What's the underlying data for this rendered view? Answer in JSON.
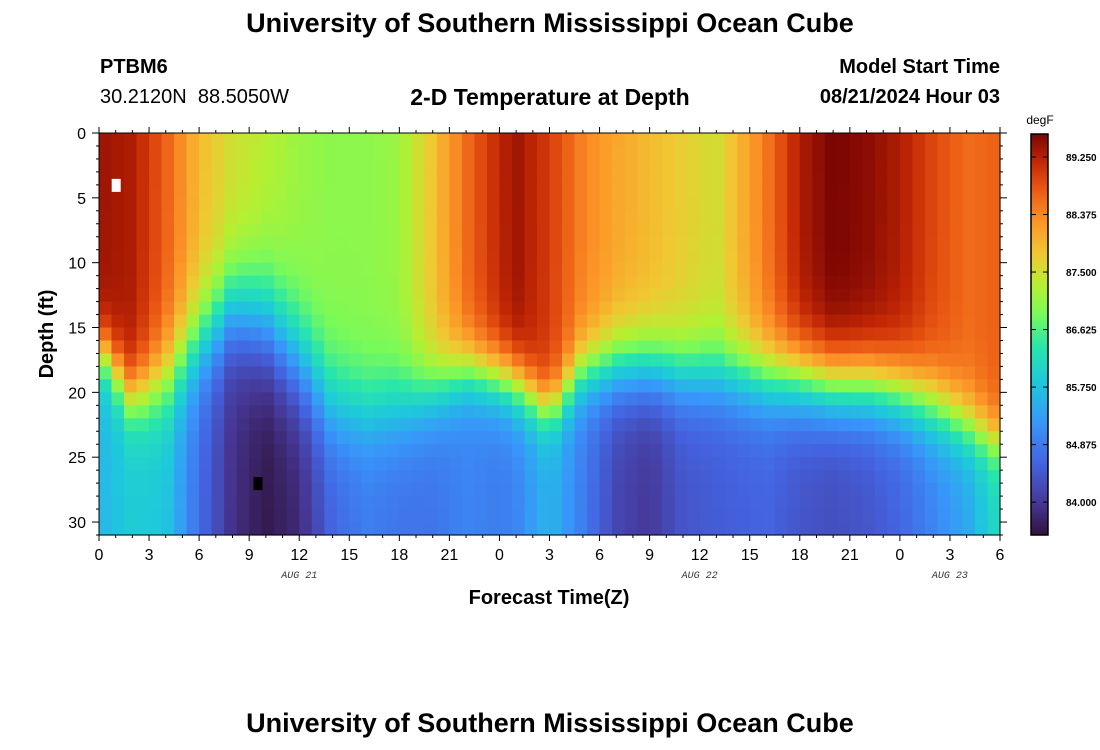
{
  "page": {
    "top_title": "University of Southern Mississippi Ocean Cube",
    "bottom_title": "University of Southern Mississippi Ocean Cube",
    "station": "PTBM6",
    "coords": "30.2120N  88.5050W",
    "plot_title": "2-D Temperature at Depth",
    "model_label": "Model Start Time",
    "model_time": "08/21/2024 Hour 03"
  },
  "chart_data": {
    "type": "heatmap",
    "title": "2-D Temperature at Depth",
    "xlabel": "Forecast Time(Z)",
    "ylabel": "Depth (ft)",
    "units": "degF",
    "x_hours_range": [
      0,
      54
    ],
    "ylim": [
      0,
      31
    ],
    "x_ticks": [
      "0",
      "3",
      "6",
      "9",
      "12",
      "15",
      "18",
      "21",
      "0",
      "3",
      "6",
      "9",
      "12",
      "15",
      "18",
      "21",
      "0",
      "3",
      "6"
    ],
    "y_ticks": [
      "0",
      "5",
      "10",
      "15",
      "20",
      "25",
      "30"
    ],
    "date_labels": [
      {
        "label": "AUG 21",
        "hour": 12
      },
      {
        "label": "AUG 22",
        "hour": 36
      },
      {
        "label": "AUG 23",
        "hour": 51
      }
    ],
    "colorbar": {
      "min": 83.5,
      "max": 89.6,
      "ticks": [
        "89.250",
        "88.375",
        "87.500",
        "86.625",
        "85.750",
        "84.875",
        "84.000"
      ]
    },
    "markers": [
      {
        "name": "max",
        "hour": 1,
        "depth": 4
      },
      {
        "name": "min",
        "hour": 9.5,
        "depth": 27
      }
    ],
    "columns": [
      {
        "hour": 0,
        "t_top": 89.4,
        "t_bottom": 85.6,
        "mid_depth": 16.5,
        "width": 2.5
      },
      {
        "hour": 2,
        "t_top": 89.3,
        "t_bottom": 85.9,
        "mid_depth": 20.5,
        "width": 3.0
      },
      {
        "hour": 4,
        "t_top": 88.7,
        "t_bottom": 85.8,
        "mid_depth": 19.0,
        "width": 4.0
      },
      {
        "hour": 6,
        "t_top": 87.9,
        "t_bottom": 84.7,
        "mid_depth": 16.0,
        "width": 4.5
      },
      {
        "hour": 8,
        "t_top": 87.5,
        "t_bottom": 83.9,
        "mid_depth": 13.5,
        "width": 4.5
      },
      {
        "hour": 10,
        "t_top": 87.3,
        "t_bottom": 83.6,
        "mid_depth": 14.5,
        "width": 5.0
      },
      {
        "hour": 12,
        "t_top": 87.1,
        "t_bottom": 83.8,
        "mid_depth": 17.5,
        "width": 5.0
      },
      {
        "hour": 14,
        "t_top": 87.0,
        "t_bottom": 84.6,
        "mid_depth": 21.0,
        "width": 4.5
      },
      {
        "hour": 16,
        "t_top": 87.0,
        "t_bottom": 84.9,
        "mid_depth": 21.5,
        "width": 4.0
      },
      {
        "hour": 18,
        "t_top": 87.1,
        "t_bottom": 84.8,
        "mid_depth": 21.0,
        "width": 4.0
      },
      {
        "hour": 20,
        "t_top": 87.8,
        "t_bottom": 84.8,
        "mid_depth": 20.0,
        "width": 3.5
      },
      {
        "hour": 22,
        "t_top": 88.6,
        "t_bottom": 85.0,
        "mid_depth": 18.5,
        "width": 3.0
      },
      {
        "hour": 24,
        "t_top": 89.2,
        "t_bottom": 84.9,
        "mid_depth": 19.0,
        "width": 3.0
      },
      {
        "hour": 25,
        "t_top": 89.4,
        "t_bottom": 85.0,
        "mid_depth": 19.5,
        "width": 3.0
      },
      {
        "hour": 27,
        "t_top": 89.0,
        "t_bottom": 85.6,
        "mid_depth": 21.5,
        "width": 2.5
      },
      {
        "hour": 29,
        "t_top": 88.4,
        "t_bottom": 84.9,
        "mid_depth": 18.5,
        "width": 3.0
      },
      {
        "hour": 31,
        "t_top": 88.1,
        "t_bottom": 84.2,
        "mid_depth": 18.0,
        "width": 3.5
      },
      {
        "hour": 33,
        "t_top": 87.9,
        "t_bottom": 84.0,
        "mid_depth": 18.0,
        "width": 3.5
      },
      {
        "hour": 35,
        "t_top": 87.7,
        "t_bottom": 84.4,
        "mid_depth": 18.5,
        "width": 3.5
      },
      {
        "hour": 37,
        "t_top": 87.5,
        "t_bottom": 84.5,
        "mid_depth": 18.5,
        "width": 3.5
      },
      {
        "hour": 40,
        "t_top": 88.5,
        "t_bottom": 84.6,
        "mid_depth": 19.0,
        "width": 3.5
      },
      {
        "hour": 42,
        "t_top": 89.3,
        "t_bottom": 84.4,
        "mid_depth": 19.0,
        "width": 3.5
      },
      {
        "hour": 44,
        "t_top": 89.6,
        "t_bottom": 84.3,
        "mid_depth": 19.5,
        "width": 3.5
      },
      {
        "hour": 46,
        "t_top": 89.5,
        "t_bottom": 84.4,
        "mid_depth": 19.5,
        "width": 3.5
      },
      {
        "hour": 48,
        "t_top": 89.3,
        "t_bottom": 84.6,
        "mid_depth": 20.0,
        "width": 3.5
      },
      {
        "hour": 50,
        "t_top": 88.9,
        "t_bottom": 85.0,
        "mid_depth": 21.0,
        "width": 3.5
      },
      {
        "hour": 52,
        "t_top": 88.6,
        "t_bottom": 85.4,
        "mid_depth": 22.5,
        "width": 3.0
      },
      {
        "hour": 54,
        "t_top": 88.7,
        "t_bottom": 86.2,
        "mid_depth": 24.0,
        "width": 2.5
      }
    ]
  }
}
